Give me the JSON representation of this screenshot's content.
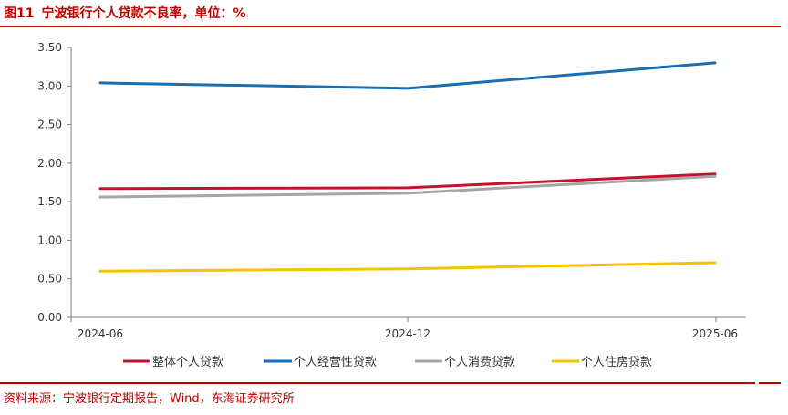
{
  "header": {
    "figure_label": "图11",
    "title": "宁波银行个人贷款不良率，单位：%"
  },
  "source": "资料来源：宁波银行定期报告，Wind，东海证券研究所",
  "chart_data": {
    "type": "line",
    "title": "宁波银行个人贷款不良率，单位：%",
    "x": [
      "2024-06",
      "2024-12",
      "2025-06"
    ],
    "ylim": [
      0,
      3.5
    ],
    "yticks": [
      "0.00",
      "0.50",
      "1.00",
      "1.50",
      "2.00",
      "2.50",
      "3.00",
      "3.50"
    ],
    "grid": false,
    "legend_position": "bottom",
    "series": [
      {
        "name": "整体个人贷款",
        "color": "#c8102e",
        "values": [
          1.67,
          1.68,
          1.86
        ]
      },
      {
        "name": "个人经营性贷款",
        "color": "#1a6fb3",
        "values": [
          3.04,
          2.97,
          3.3
        ]
      },
      {
        "name": "个人消费贷款",
        "color": "#a6a6a6",
        "values": [
          1.56,
          1.61,
          1.83
        ]
      },
      {
        "name": "个人住房贷款",
        "color": "#f5c400",
        "values": [
          0.6,
          0.63,
          0.71
        ]
      }
    ]
  }
}
